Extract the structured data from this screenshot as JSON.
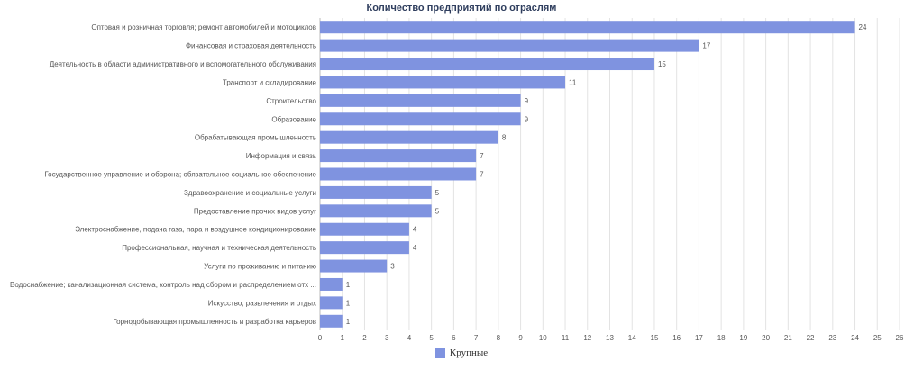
{
  "chart_data": {
    "type": "bar",
    "orientation": "horizontal",
    "title": "Количество предприятий по отраслям",
    "xlabel": "",
    "ylabel": "",
    "xlim": [
      0,
      26
    ],
    "ticks": [
      "0",
      "1",
      "2",
      "3",
      "4",
      "5",
      "6",
      "7",
      "8",
      "9",
      "10",
      "11",
      "12",
      "13",
      "14",
      "15",
      "16",
      "17",
      "18",
      "19",
      "20",
      "21",
      "22",
      "23",
      "24",
      "25",
      "26"
    ],
    "grid": "vertical",
    "legend_position": "bottom",
    "categories": [
      "Оптовая и розничная торговля; ремонт автомобилей и мотоциклов",
      "Финансовая и страховая деятельность",
      "Деятельность в области административного и вспомогательного обслуживания",
      "Транспорт и складирование",
      "Строительство",
      "Образование",
      "Обрабатывающая промышленность",
      "Информация и связь",
      "Государственное управление и оборона; обязательное социальное обеспечение",
      "Здравоохранение и социальные услуги",
      "Предоставление прочих видов услуг",
      "Электроснабжение, подача газа, пара и воздушное кондиционирование",
      "Профессиональная, научная и техническая деятельность",
      "Услуги по проживанию и питанию",
      "Водоснабжение; канализационная система, контроль над сбором и распределением отх ...",
      "Искусство, развлечения и отдых",
      "Горнодобывающая промышленность и разработка карьеров"
    ],
    "series": [
      {
        "name": "Крупные",
        "color": "#7f93e0",
        "values": [
          24,
          17,
          15,
          11,
          9,
          9,
          8,
          7,
          7,
          5,
          5,
          4,
          4,
          3,
          1,
          1,
          1
        ]
      }
    ]
  }
}
